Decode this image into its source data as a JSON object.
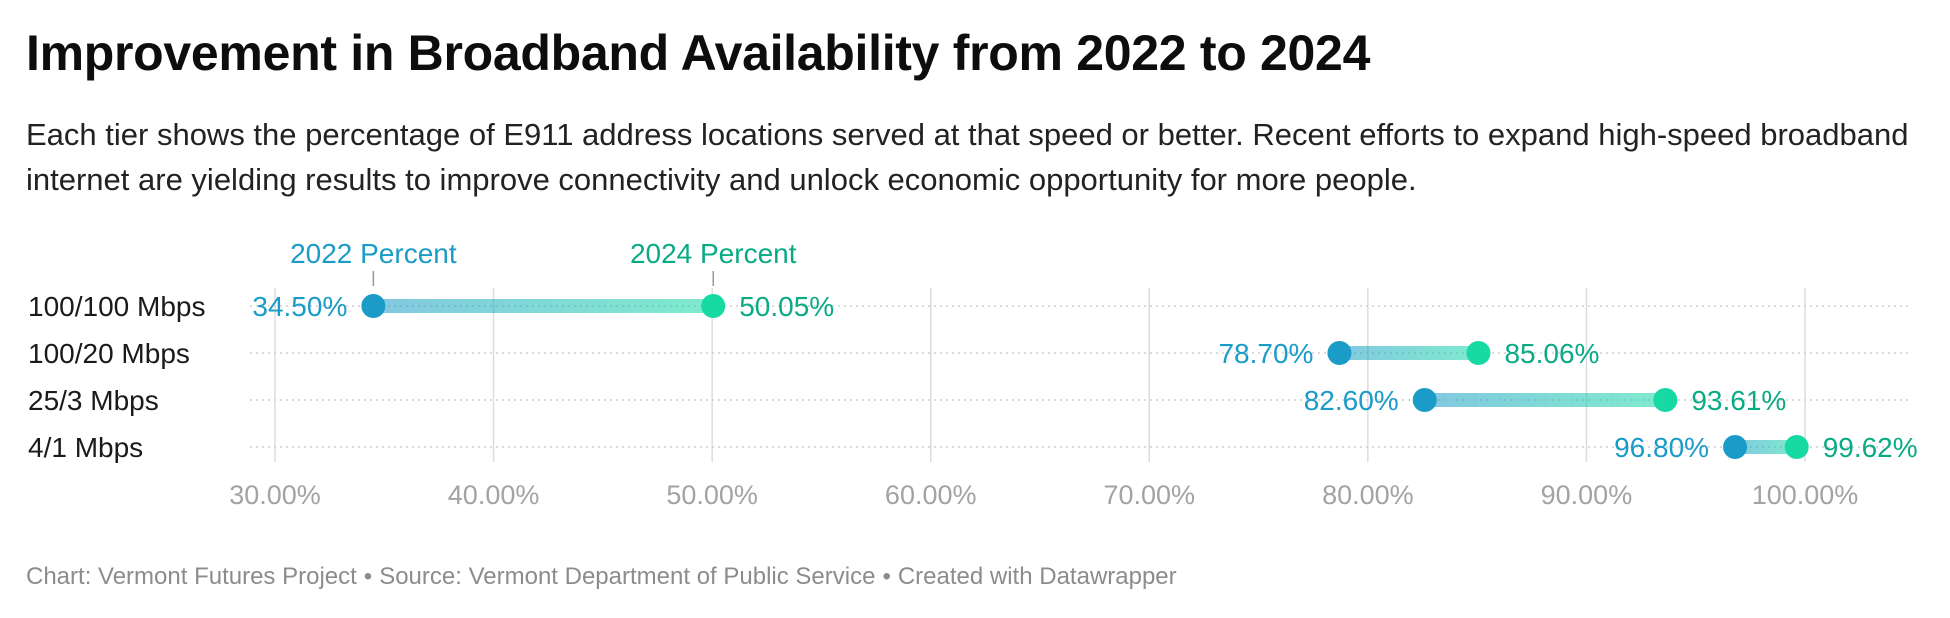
{
  "header": {
    "title": "Improvement in Broadband Availability from 2022 to 2024",
    "subtitle": "Each tier shows the percentage of E911 address locations served at that speed or better. Recent efforts to expand high-speed broadband internet are yielding results to improve connectivity and unlock economic opportunity for more people."
  },
  "colors": {
    "series_2022": "#1b9bc7",
    "series_2024": "#16d9a4",
    "label_2024": "#0aab84",
    "grid": "#dddddd",
    "axis_text": "#a3a3a3"
  },
  "chart_data": {
    "type": "dot-range",
    "title": "Improvement in Broadband Availability from 2022 to 2024",
    "categories": [
      "100/100 Mbps",
      "100/20 Mbps",
      "25/3 Mbps",
      "4/1 Mbps"
    ],
    "series": [
      {
        "name": "2022 Percent",
        "values": [
          34.5,
          78.7,
          82.6,
          96.8
        ],
        "labels": [
          "34.50%",
          "78.70%",
          "82.60%",
          "96.80%"
        ]
      },
      {
        "name": "2024 Percent",
        "values": [
          50.05,
          85.06,
          93.61,
          99.62
        ],
        "labels": [
          "50.05%",
          "85.06%",
          "93.61%",
          "99.62%"
        ]
      }
    ],
    "xlim": [
      30,
      100
    ],
    "xticks": [
      30,
      40,
      50,
      60,
      70,
      80,
      90,
      100
    ],
    "xtick_labels": [
      "30.00%",
      "40.00%",
      "50.00%",
      "60.00%",
      "70.00%",
      "80.00%",
      "90.00%",
      "100.00%"
    ],
    "grid": true,
    "legend_placement": "inline-above-first-row"
  },
  "notes": {
    "chart_credit": "Chart: Vermont Futures Project",
    "source": "Source: Vermont Department of Public Service",
    "created_with": "Created with Datawrapper",
    "separator": "•"
  }
}
